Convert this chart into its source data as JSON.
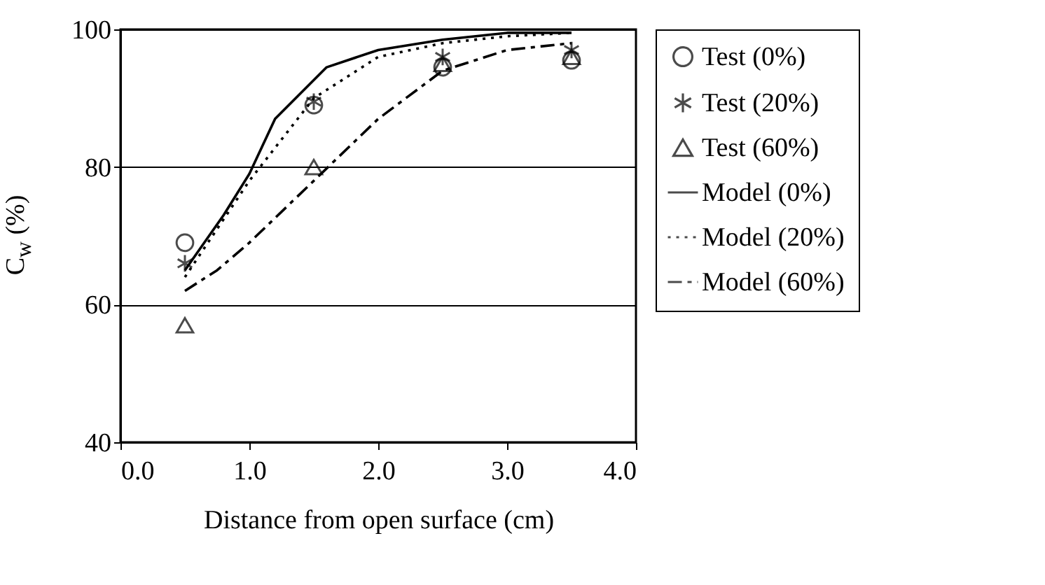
{
  "chart_data": {
    "type": "scatter",
    "xlabel": "Distance from open surface (cm)",
    "ylabel": "C$_{w}$ (%)",
    "xlim": [
      0,
      4
    ],
    "xticks": [
      {
        "value": 0,
        "label": "0.0"
      },
      {
        "value": 1,
        "label": "1.0"
      },
      {
        "value": 2,
        "label": "2.0"
      },
      {
        "value": 3,
        "label": "3.0"
      },
      {
        "value": 4,
        "label": "4.0"
      }
    ],
    "ylim": [
      40,
      100
    ],
    "yticks": [
      40,
      60,
      80,
      100
    ],
    "grid": "y",
    "legend": "right",
    "series": [
      {
        "name": "Test (0%)",
        "marker": "circle",
        "color": "#000000",
        "x": [
          0.5,
          1.5,
          2.5,
          3.5
        ],
        "values": [
          69,
          89,
          94.5,
          95.5
        ]
      },
      {
        "name": "Test (20%)",
        "marker": "cross",
        "color": "#000000",
        "x": [
          0.5,
          1.5,
          2.5,
          3.5
        ],
        "values": [
          66,
          89.5,
          96,
          97
        ]
      },
      {
        "name": "Test (60%)",
        "marker": "triangle",
        "color": "#000000",
        "x": [
          0.5,
          1.5,
          2.5,
          3.5
        ],
        "values": [
          57,
          80,
          95,
          96
        ]
      },
      {
        "name": "Model (0%)",
        "type": "line",
        "line_style": "solid",
        "color": "#000000",
        "x": [
          0.5,
          0.8,
          1.0,
          1.2,
          1.6,
          2.0,
          2.5,
          3.0,
          3.5
        ],
        "values": [
          65,
          73,
          79,
          87,
          94.5,
          97,
          98.5,
          99.5,
          99.5
        ]
      },
      {
        "name": "Model (20%)",
        "type": "line",
        "line_style": "dotted",
        "color": "#000000",
        "x": [
          0.5,
          1.0,
          1.5,
          2.0,
          2.5,
          3.0,
          3.5
        ],
        "values": [
          64,
          78,
          90,
          96,
          98,
          99,
          99.5
        ]
      },
      {
        "name": "Model (60%)",
        "type": "line",
        "line_style": "dashdot",
        "color": "#000000",
        "x": [
          0.5,
          0.75,
          1.0,
          1.5,
          2.0,
          2.5,
          3.0,
          3.5
        ],
        "values": [
          62,
          65,
          69,
          78,
          87,
          94,
          97,
          98
        ]
      }
    ]
  }
}
